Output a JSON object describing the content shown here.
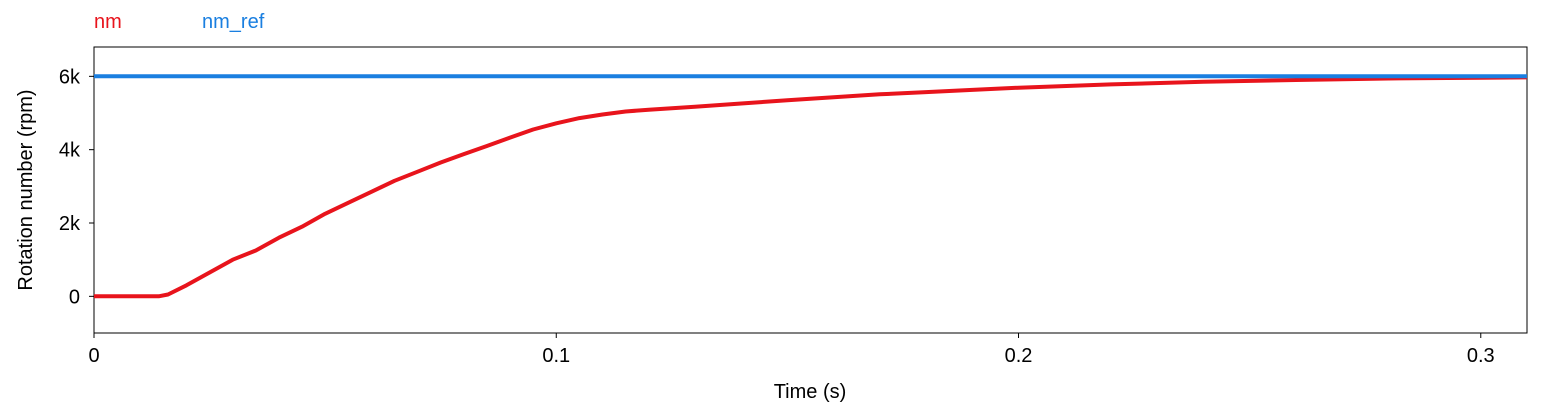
{
  "chart_data": {
    "type": "line",
    "xlabel": "Time (s)",
    "ylabel": "Rotation number (rpm)",
    "xlim": [
      0,
      0.31
    ],
    "ylim": [
      -1000,
      6800
    ],
    "x_ticks": [
      0,
      0.1,
      0.2,
      0.3
    ],
    "x_tick_labels": [
      "0",
      "0.1",
      "0.2",
      "0.3"
    ],
    "y_ticks": [
      0,
      2000,
      4000,
      6000
    ],
    "y_tick_labels": [
      "0",
      "2k",
      "4k",
      "6k"
    ],
    "grid": false,
    "legend_position": "top-left",
    "series": [
      {
        "name": "nm",
        "color": "#e8141c",
        "x": [
          0,
          0.005,
          0.01,
          0.014,
          0.016,
          0.02,
          0.025,
          0.03,
          0.035,
          0.04,
          0.045,
          0.05,
          0.055,
          0.06,
          0.065,
          0.07,
          0.075,
          0.08,
          0.085,
          0.09,
          0.095,
          0.1,
          0.105,
          0.11,
          0.115,
          0.12,
          0.13,
          0.14,
          0.15,
          0.16,
          0.17,
          0.18,
          0.19,
          0.2,
          0.22,
          0.24,
          0.26,
          0.28,
          0.3,
          0.31
        ],
        "values": [
          0,
          0,
          0,
          0,
          50,
          300,
          650,
          1000,
          1250,
          1600,
          1900,
          2250,
          2550,
          2850,
          3150,
          3400,
          3650,
          3880,
          4100,
          4330,
          4550,
          4720,
          4860,
          4960,
          5040,
          5090,
          5170,
          5260,
          5350,
          5430,
          5510,
          5570,
          5630,
          5690,
          5780,
          5850,
          5900,
          5940,
          5960,
          5970
        ]
      },
      {
        "name": "nm_ref",
        "color": "#1a7fe0",
        "x": [
          0,
          0.31
        ],
        "values": [
          6000,
          6000
        ]
      }
    ]
  }
}
